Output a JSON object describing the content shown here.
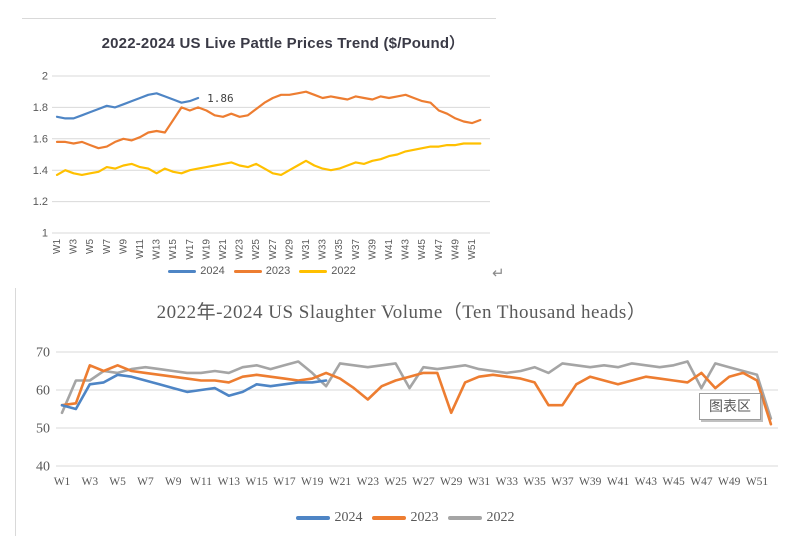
{
  "page": {
    "return_mark": "↵"
  },
  "tooltip": {
    "label": "图表区"
  },
  "colors": {
    "blue": "#4e85c5",
    "orange": "#ED7D31",
    "yellow": "#FFC000",
    "gray": "#A5A5A5",
    "grid": "#d9d9d9",
    "tick_text": "#595959",
    "title_top": "#3a3a46",
    "title_bottom": "#595959"
  },
  "charts": [
    {
      "id": "price-trend",
      "chart_data": {
        "type": "line",
        "title": "2022-2024 US Live Pattle Prices Trend ($/Pound）",
        "xlabel": "",
        "ylabel": "",
        "ylim": [
          1,
          2
        ],
        "y_ticks": [
          "2",
          "1.8",
          "1.6",
          "1.4",
          "1.2",
          "1"
        ],
        "y_tick_values": [
          2,
          1.8,
          1.6,
          1.4,
          1.2,
          1
        ],
        "x_tick_labels": [
          "W1",
          "W3",
          "W5",
          "W7",
          "W9",
          "W11",
          "W13",
          "W15",
          "W17",
          "W19",
          "W21",
          "W23",
          "W25",
          "W27",
          "W29",
          "W31",
          "W33",
          "W35",
          "W37",
          "W39",
          "W41",
          "W43",
          "W45",
          "W47",
          "W49",
          "W51"
        ],
        "weeks_total": 52,
        "grid": true,
        "legend_position": "bottom",
        "annotation": {
          "text": "1.86",
          "week": 18,
          "value": 1.86
        },
        "series": [
          {
            "name": "2024",
            "color": "#4e85c5",
            "values": [
              1.74,
              1.73,
              1.73,
              1.75,
              1.77,
              1.79,
              1.81,
              1.8,
              1.82,
              1.84,
              1.86,
              1.88,
              1.89,
              1.87,
              1.85,
              1.83,
              1.84,
              1.86
            ]
          },
          {
            "name": "2023",
            "color": "#ED7D31",
            "values": [
              1.58,
              1.58,
              1.57,
              1.58,
              1.56,
              1.54,
              1.55,
              1.58,
              1.6,
              1.59,
              1.61,
              1.64,
              1.65,
              1.64,
              1.72,
              1.8,
              1.78,
              1.8,
              1.78,
              1.75,
              1.74,
              1.76,
              1.74,
              1.75,
              1.79,
              1.83,
              1.86,
              1.88,
              1.88,
              1.89,
              1.9,
              1.88,
              1.86,
              1.87,
              1.86,
              1.85,
              1.87,
              1.86,
              1.85,
              1.87,
              1.86,
              1.87,
              1.88,
              1.86,
              1.84,
              1.83,
              1.78,
              1.76,
              1.73,
              1.71,
              1.7,
              1.72
            ]
          },
          {
            "name": "2022",
            "color": "#FFC000",
            "values": [
              1.37,
              1.4,
              1.38,
              1.37,
              1.38,
              1.39,
              1.42,
              1.41,
              1.43,
              1.44,
              1.42,
              1.41,
              1.38,
              1.41,
              1.39,
              1.38,
              1.4,
              1.41,
              1.42,
              1.43,
              1.44,
              1.45,
              1.43,
              1.42,
              1.44,
              1.41,
              1.38,
              1.37,
              1.4,
              1.43,
              1.46,
              1.43,
              1.41,
              1.4,
              1.41,
              1.43,
              1.45,
              1.44,
              1.46,
              1.47,
              1.49,
              1.5,
              1.52,
              1.53,
              1.54,
              1.55,
              1.55,
              1.56,
              1.56,
              1.57,
              1.57,
              1.57
            ]
          }
        ]
      }
    },
    {
      "id": "slaughter-volume",
      "chart_data": {
        "type": "line",
        "title": "2022年-2024 US Slaughter Volume（Ten Thousand heads）",
        "xlabel": "",
        "ylabel": "",
        "ylim": [
          40,
          70
        ],
        "y_ticks": [
          "70",
          "60",
          "50",
          "40"
        ],
        "y_tick_values": [
          70,
          60,
          50,
          40
        ],
        "x_tick_labels": [
          "W1",
          "W3",
          "W5",
          "W7",
          "W9",
          "W11",
          "W13",
          "W15",
          "W17",
          "W19",
          "W21",
          "W23",
          "W25",
          "W27",
          "W29",
          "W31",
          "W33",
          "W35",
          "W37",
          "W39",
          "W41",
          "W43",
          "W45",
          "W47",
          "W49",
          "W51"
        ],
        "weeks_total": 52,
        "grid": true,
        "legend_position": "bottom",
        "series": [
          {
            "name": "2024",
            "color": "#4e85c5",
            "values": [
              56,
              55,
              61.5,
              62,
              64,
              63.5,
              62.5,
              61.5,
              60.5,
              59.5,
              60,
              60.5,
              58.5,
              59.5,
              61.5,
              61,
              61.5,
              62,
              62,
              62.5
            ]
          },
          {
            "name": "2023",
            "color": "#ED7D31",
            "values": [
              56,
              56.5,
              66.5,
              65,
              66.5,
              65,
              64.5,
              64,
              63.5,
              63,
              62.5,
              62.5,
              62,
              63.5,
              64,
              63.5,
              63,
              62.5,
              63,
              64.5,
              63,
              60.5,
              57.5,
              61,
              62.5,
              63.5,
              64.5,
              64.5,
              54,
              62,
              63.5,
              64,
              63.5,
              63,
              62,
              56,
              56,
              61.5,
              63.5,
              62.5,
              61.5,
              62.5,
              63.5,
              63,
              62.5,
              62,
              64.5,
              60.5,
              63.5,
              64.5,
              62.5,
              51
            ]
          },
          {
            "name": "2022",
            "color": "#A5A5A5",
            "values": [
              54,
              62.5,
              62.5,
              65,
              64.5,
              65.5,
              66,
              65.5,
              65,
              64.5,
              64.5,
              65,
              64.5,
              66,
              66.5,
              65.5,
              66.5,
              67.5,
              64.5,
              61,
              67,
              66.5,
              66,
              66.5,
              67,
              60.5,
              66,
              65.5,
              66,
              66.5,
              65.5,
              65,
              64.5,
              65,
              66,
              64.5,
              67,
              66.5,
              66,
              66.5,
              66,
              67,
              66.5,
              66,
              66.5,
              67.5,
              60.5,
              67,
              66,
              65,
              64,
              52.5
            ]
          }
        ]
      }
    }
  ]
}
